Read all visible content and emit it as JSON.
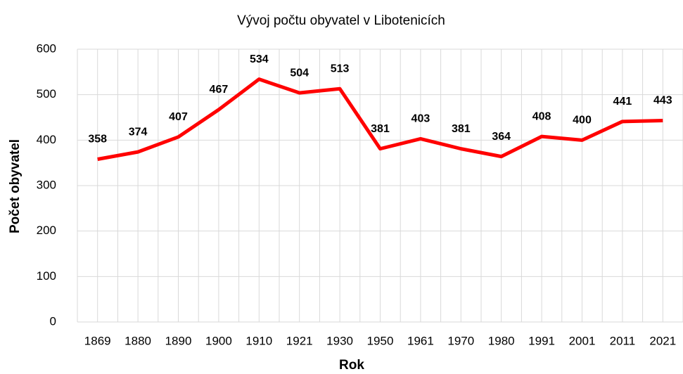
{
  "chart_data": {
    "type": "line",
    "title": "Vývoj počtu obyvatel v Libotenicích",
    "x_label": "Rok",
    "y_label": "Počet obyvatel",
    "categories": [
      "1869",
      "1880",
      "1890",
      "1900",
      "1910",
      "1921",
      "1930",
      "1950",
      "1961",
      "1970",
      "1980",
      "1991",
      "2001",
      "2011",
      "2021"
    ],
    "series": [
      {
        "name": "Počet obyvatel",
        "color": "#ff0000",
        "values": [
          358,
          374,
          407,
          467,
          534,
          504,
          513,
          381,
          403,
          381,
          364,
          408,
          400,
          441,
          443
        ]
      }
    ],
    "ylim": [
      0,
      600
    ],
    "yticks": [
      0,
      100,
      200,
      300,
      400,
      500,
      600
    ],
    "grid": true,
    "data_labels": true
  }
}
